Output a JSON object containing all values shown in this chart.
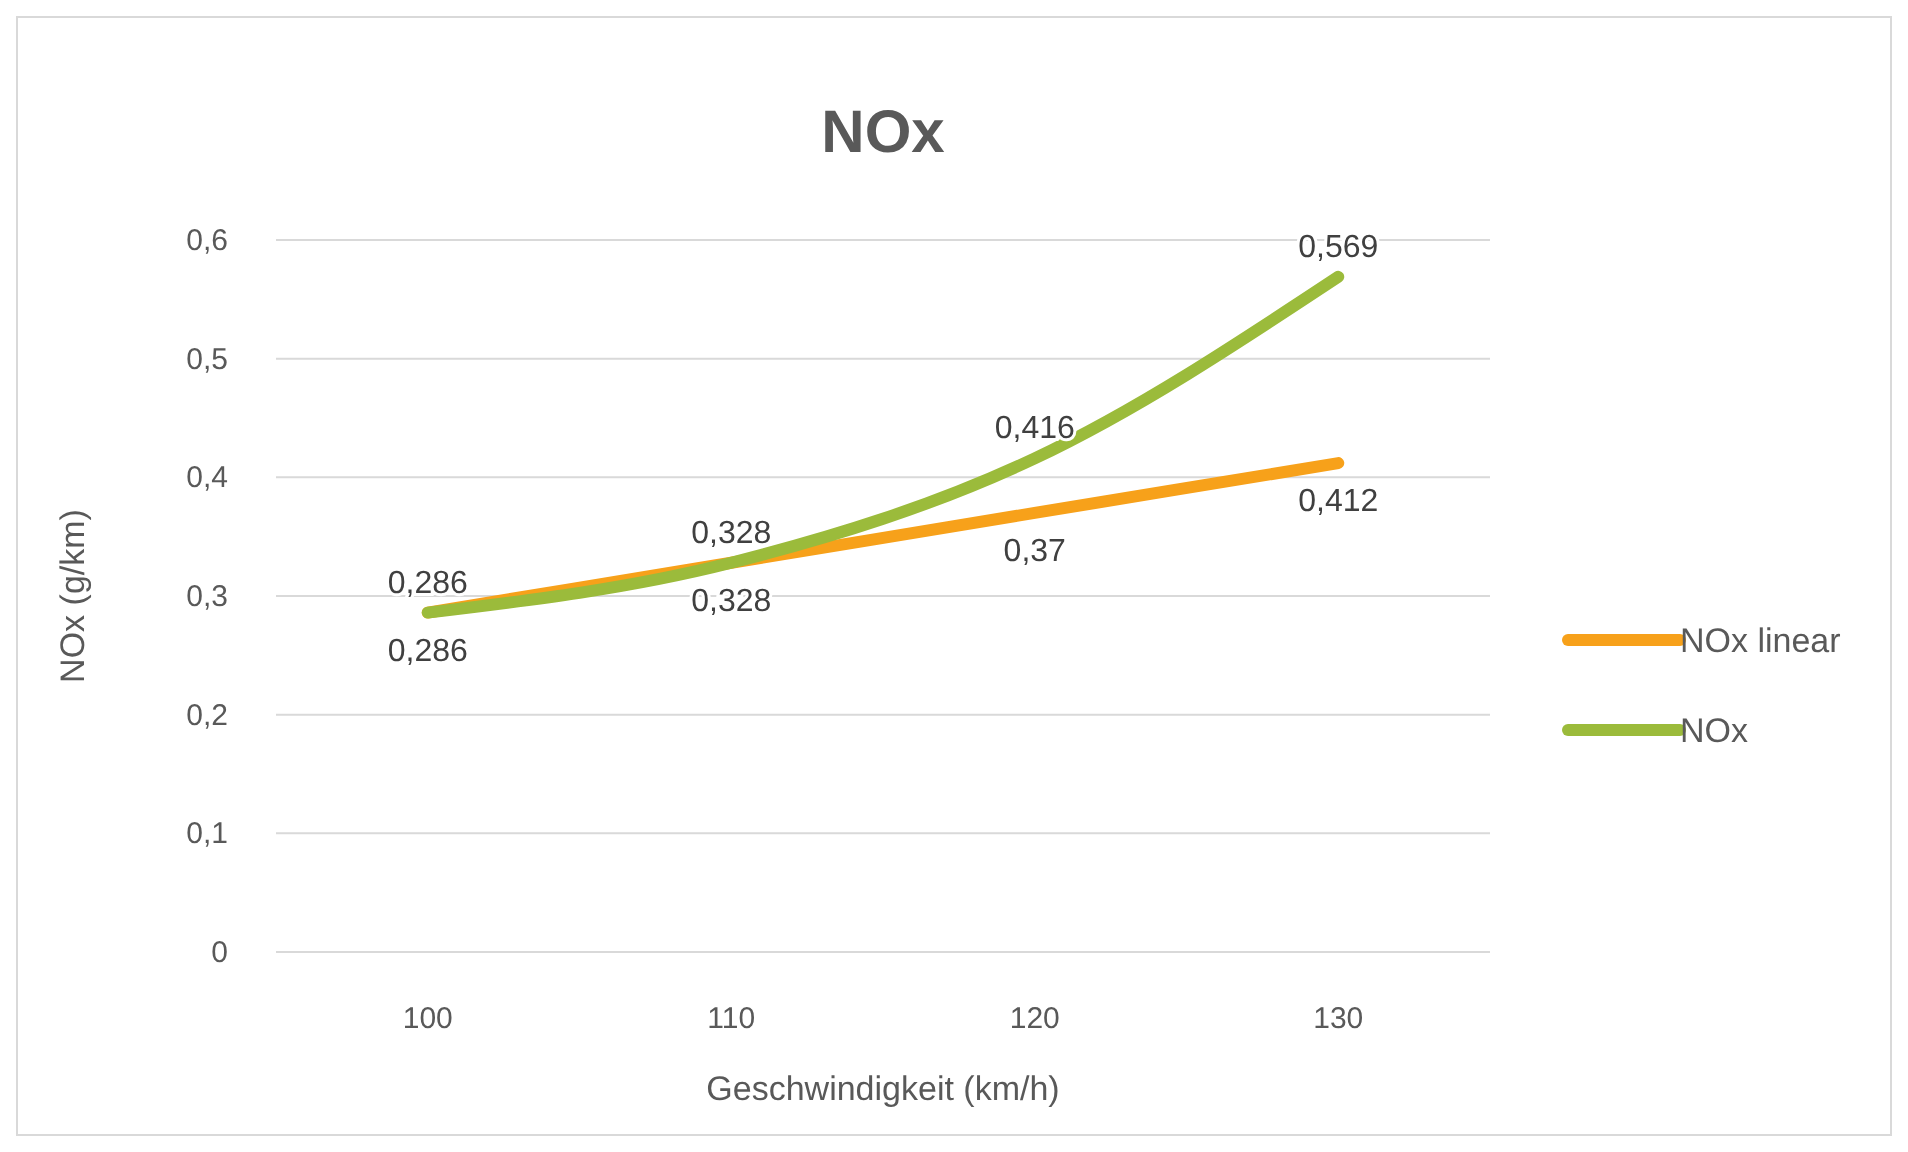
{
  "chart_data": {
    "type": "line",
    "title": "NOx",
    "xlabel": "Geschwindigkeit (km/h)",
    "ylabel": "NOx (g/km)",
    "categories": [
      "100",
      "110",
      "120",
      "130"
    ],
    "series": [
      {
        "name": "NOx linear",
        "color": "#f7a11a",
        "values": [
          0.286,
          0.328,
          0.37,
          0.412
        ],
        "value_labels": [
          "0,286",
          "0,328",
          "0,37",
          "0,412"
        ]
      },
      {
        "name": "NOx",
        "color": "#9bbb3b",
        "values": [
          0.286,
          0.328,
          0.416,
          0.569
        ],
        "value_labels": [
          "0,286",
          "0,328",
          "0,416",
          "0,569"
        ]
      }
    ],
    "ylim": [
      0,
      0.6
    ],
    "yticks": [
      {
        "value": 0,
        "label": "0"
      },
      {
        "value": 0.1,
        "label": "0,1"
      },
      {
        "value": 0.2,
        "label": "0,2"
      },
      {
        "value": 0.3,
        "label": "0,3"
      },
      {
        "value": 0.4,
        "label": "0,4"
      },
      {
        "value": 0.5,
        "label": "0,5"
      },
      {
        "value": 0.6,
        "label": "0,6"
      }
    ],
    "grid": "y",
    "legend": "right",
    "marker": "none",
    "line_style": "solid"
  }
}
